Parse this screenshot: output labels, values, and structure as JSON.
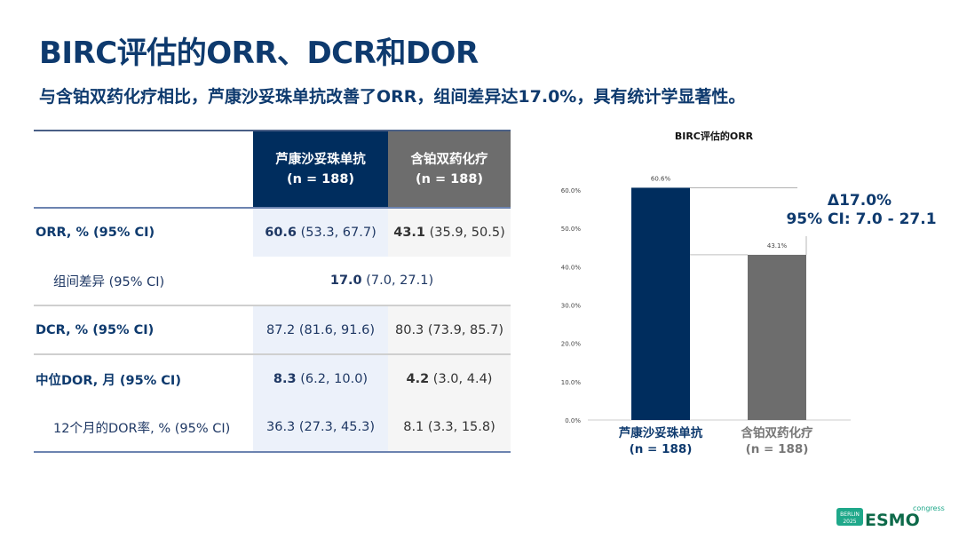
{
  "title": "BIRC评估的ORR、DCR和DOR",
  "subtitle": "与含铂双药化疗相比，芦康沙妥珠单抗改善了ORR，组间差异达17.0%，具有统计学显著性。",
  "table": {
    "headers": [
      {
        "name": "芦康沙妥珠单抗",
        "n": "(n = 188)"
      },
      {
        "name": "含铂双药化疗",
        "n": "(n = 188)"
      }
    ],
    "rows": [
      {
        "label": "ORR, % (95% CI)",
        "v1": "60.6",
        "ci1": " (53.3, 67.7)",
        "v2": "43.1",
        "ci2": " (35.9, 50.5)"
      },
      {
        "label": "组间差异 (95% CI)",
        "v": "17.0",
        "ci": " (7.0, 27.1)"
      },
      {
        "label": "DCR, % (95% CI)",
        "v1": "87.2 (81.6, 91.6)",
        "v2": "80.3 (73.9, 85.7)"
      },
      {
        "label": "中位DOR, 月 (95% CI)",
        "v1": "8.3",
        "ci1": " (6.2, 10.0)",
        "v2": "4.2",
        "ci2": " (3.0, 4.4)"
      },
      {
        "label": "12个月的DOR率, % (95% CI)",
        "v1": "36.3 (27.3, 45.3)",
        "v2": "8.1 (3.3, 15.8)"
      }
    ]
  },
  "chart_data": {
    "type": "bar",
    "title": "BIRC评估的ORR",
    "categories": [
      "芦康沙妥珠单抗",
      "含铂双药化疗"
    ],
    "category_n": [
      "(n = 188)",
      "(n = 188)"
    ],
    "values": [
      60.6,
      43.1
    ],
    "data_labels": [
      "60.6%",
      "43.1%"
    ],
    "colors": [
      "#002d5e",
      "#6d6d6d"
    ],
    "ylim": [
      0,
      60
    ],
    "yticks": [
      "0.0%",
      "10.0%",
      "20.0%",
      "30.0%",
      "40.0%",
      "50.0%",
      "60.0%"
    ],
    "annotation": {
      "delta": "Δ17.0%",
      "ci": "95% CI: 7.0 - 27.1"
    }
  },
  "logo": {
    "city": "BERLIN",
    "year": "2025",
    "brand": "ESMO",
    "suffix": "congress"
  }
}
